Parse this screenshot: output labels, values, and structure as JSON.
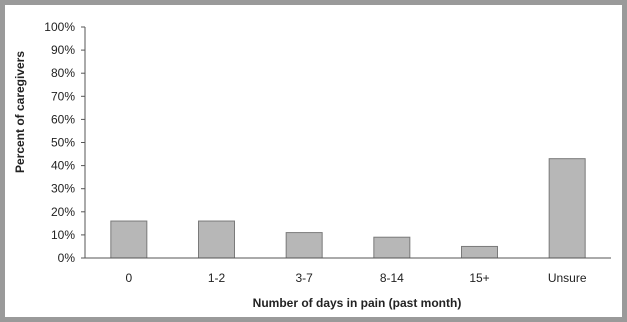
{
  "chart_data": {
    "type": "bar",
    "title": "",
    "xlabel": "Number of days in pain (past month)",
    "ylabel": "Percent of caregivers",
    "categories": [
      "0",
      "1-2",
      "3-7",
      "8-14",
      "15+",
      "Unsure"
    ],
    "values": [
      16,
      16,
      11,
      9,
      5,
      43
    ],
    "ylim": [
      0,
      100
    ],
    "yticks": [
      "0%",
      "10%",
      "20%",
      "30%",
      "40%",
      "50%",
      "60%",
      "70%",
      "80%",
      "90%",
      "100%"
    ],
    "grid": false,
    "legend": "none",
    "colors": {
      "bar": "#b7b7b7",
      "bar_edge": "#7a7a7a",
      "axis": "#555555",
      "frame": "#9a9a9a"
    }
  }
}
